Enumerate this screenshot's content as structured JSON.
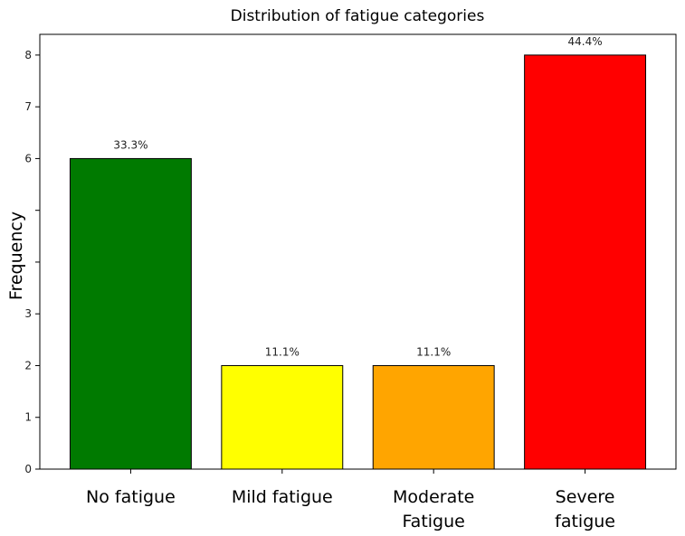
{
  "chart_data": {
    "type": "bar",
    "title": "Distribution of fatigue categories",
    "xlabel": "",
    "ylabel": "Frequency",
    "ylim": [
      0,
      8.4
    ],
    "yticks": [
      {
        "value": 0,
        "label": "0"
      },
      {
        "value": 1,
        "label": "1"
      },
      {
        "value": 2,
        "label": "2"
      },
      {
        "value": 3,
        "label": "3"
      },
      {
        "value": 4,
        "label": ""
      },
      {
        "value": 5,
        "label": ""
      },
      {
        "value": 6,
        "label": "6"
      },
      {
        "value": 7,
        "label": "7"
      },
      {
        "value": 8,
        "label": "8"
      }
    ],
    "categories": [
      [
        "No fatigue"
      ],
      [
        "Mild fatigue"
      ],
      [
        "Moderate",
        "Fatigue"
      ],
      [
        "Severe",
        "fatigue"
      ]
    ],
    "values": [
      6,
      2,
      2,
      8
    ],
    "data_labels": [
      "33.3%",
      "11.1%",
      "11.1%",
      "44.4%"
    ],
    "colors": [
      "#007a00",
      "#ffff00",
      "#ffa500",
      "#ff0000"
    ],
    "grid": false,
    "legend": "none"
  }
}
